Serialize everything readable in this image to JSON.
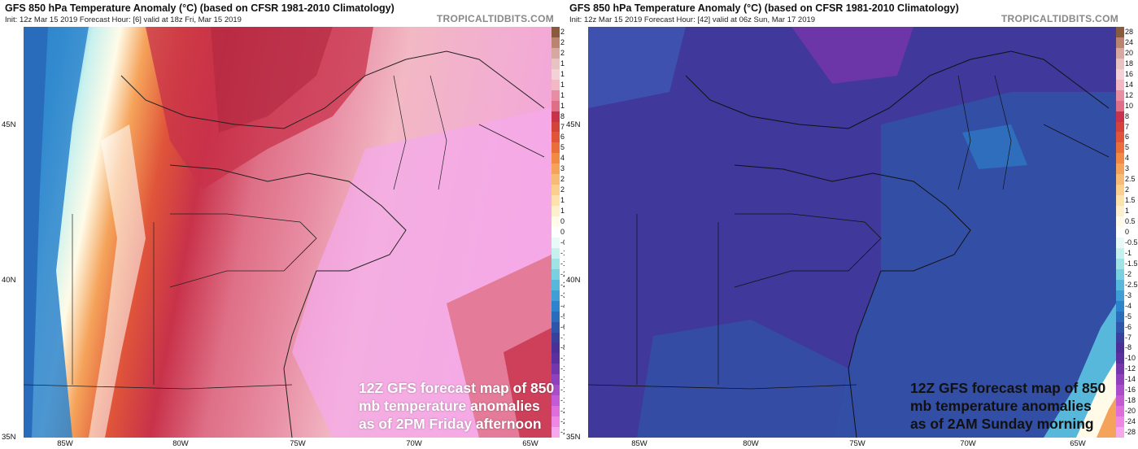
{
  "panels": [
    {
      "title": "GFS 850 hPa Temperature Anomaly (°C) (based on CFSR 1981-2010 Climatology)",
      "subtitle": "Init: 12z Mar 15 2019   Forecast Hour: [6]   valid at 18z Fri, Mar 15 2019",
      "brand": "TROPICALTIDBITS.COM",
      "caption": [
        "12Z GFS forecast map of 850",
        "mb temperature anomalies",
        "as of 2PM Friday afternoon"
      ]
    },
    {
      "title": "GFS 850 hPa Temperature Anomaly (°C) (based on CFSR 1981-2010 Climatology)",
      "subtitle": "Init: 12z Mar 15 2019   Forecast Hour: [42]   valid at 06z Sun, Mar 17 2019",
      "brand": "TROPICALTIDBITS.COM",
      "caption": [
        "12Z GFS forecast map of 850",
        "mb temperature anomalies",
        "as of 2AM Sunday morning"
      ]
    }
  ],
  "lat_labels": [
    "45N",
    "40N",
    "35N"
  ],
  "lon_labels": [
    "85W",
    "80W",
    "75W",
    "70W",
    "65W"
  ],
  "colorbar": {
    "labels": [
      "28",
      "24",
      "20",
      "18",
      "16",
      "14",
      "12",
      "10",
      "8",
      "7",
      "6",
      "5",
      "4",
      "3",
      "2.5",
      "2",
      "1.5",
      "1",
      "0.5",
      "0",
      "-0.5",
      "-1",
      "-1.5",
      "-2",
      "-2.5",
      "-3",
      "-4",
      "-5",
      "-6",
      "-7",
      "-8",
      "-10",
      "-12",
      "-14",
      "-16",
      "-18",
      "-20",
      "-24",
      "-28"
    ],
    "colors": [
      "#8a5a3c",
      "#b98570",
      "#d7a8a0",
      "#e9c2c2",
      "#f3d1d6",
      "#f2b8c4",
      "#e88ea4",
      "#de6f86",
      "#c8324a",
      "#d4423c",
      "#e0553a",
      "#ea6d3c",
      "#f18a44",
      "#f5a35a",
      "#f8bb75",
      "#fbd08f",
      "#fde2ab",
      "#fef0cc",
      "#fffbe8",
      "#ffffff",
      "#e8faf8",
      "#c7f1ee",
      "#9fe3e6",
      "#78d0e0",
      "#58b8dc",
      "#3f9ed6",
      "#2d84cc",
      "#2a6cbc",
      "#2f55a8",
      "#3a3f9c",
      "#4a2f96",
      "#5c2f9e",
      "#7436ab",
      "#8f40bd",
      "#a94dca",
      "#c45ad4",
      "#dd6edc",
      "#ee88e4",
      "#f5a9ec"
    ]
  }
}
